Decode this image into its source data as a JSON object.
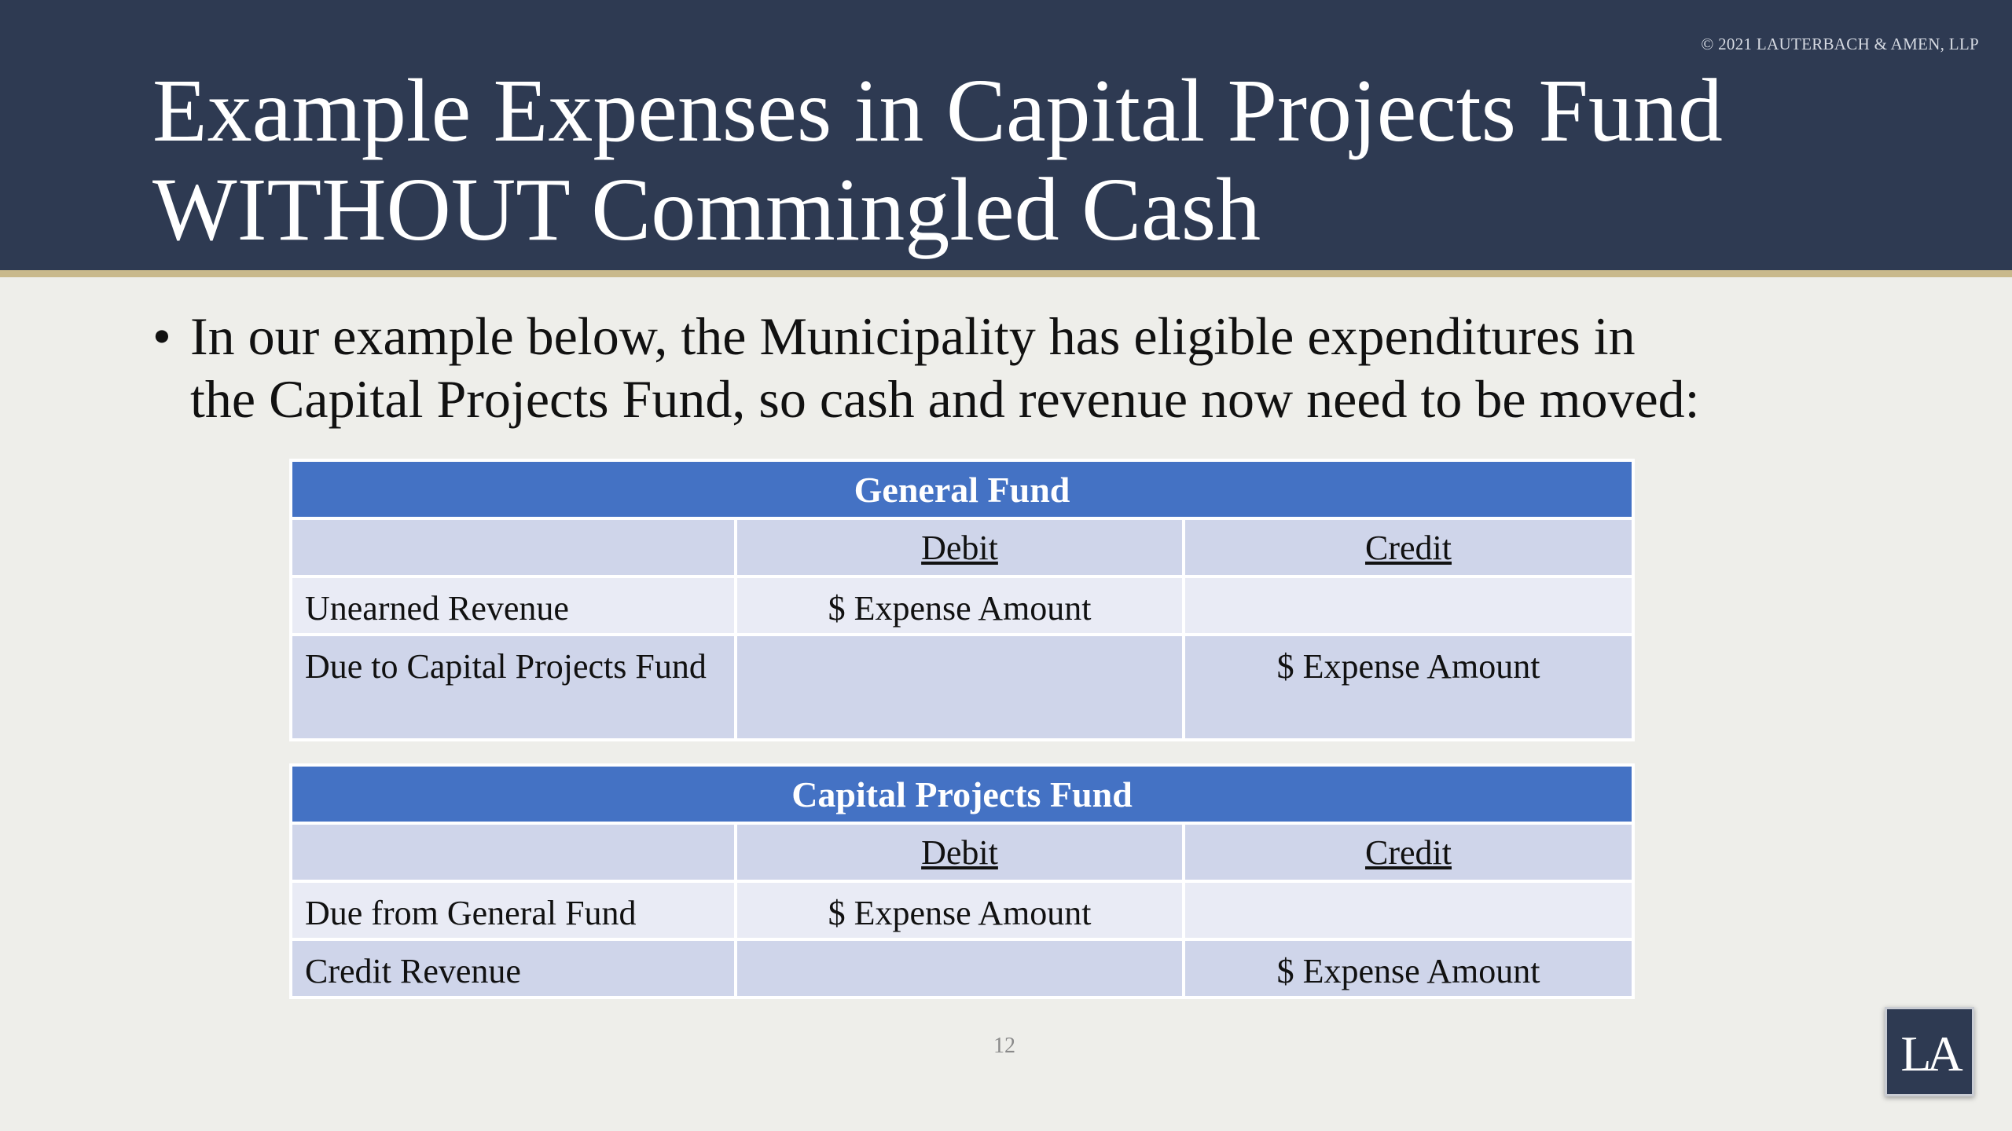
{
  "header": {
    "copyright": "© 2021 LAUTERBACH & AMEN, LLP",
    "title_line1": "Example Expenses in Capital Projects Fund",
    "title_line2": "WITHOUT Commingled Cash"
  },
  "body": {
    "bullet_symbol": "•",
    "bullet_line1": "In our example below, the Municipality has eligible expenditures in",
    "bullet_line2": "the Capital Projects Fund, so cash and revenue now need to be moved:"
  },
  "general_fund": {
    "title": "General Fund",
    "debit_header": "Debit",
    "credit_header": "Credit",
    "rows": [
      {
        "account": "Unearned Revenue",
        "debit": "$ Expense Amount",
        "credit": ""
      },
      {
        "account": "Due to Capital Projects Fund",
        "debit": "",
        "credit": "$ Expense Amount"
      }
    ]
  },
  "capital_projects_fund": {
    "title": "Capital Projects Fund",
    "debit_header": "Debit",
    "credit_header": "Credit",
    "rows": [
      {
        "account": "Due from General Fund",
        "debit": "$ Expense Amount",
        "credit": ""
      },
      {
        "account": "Credit Revenue",
        "debit": "",
        "credit": "$ Expense Amount"
      }
    ]
  },
  "footer": {
    "page_number": "12",
    "logo_text": "LA"
  },
  "colors": {
    "header_bg": "#2e3a52",
    "gold_rule": "#c9b98c",
    "table_title_bg": "#4472c4",
    "row_dark": "#cfd5ea",
    "row_light": "#e9ebf5",
    "slide_bg": "#eeeeea"
  }
}
